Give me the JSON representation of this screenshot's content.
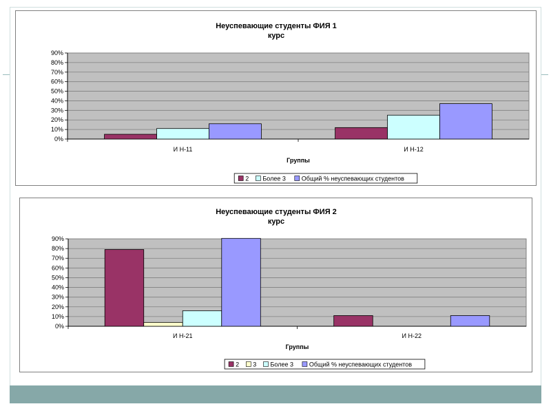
{
  "colors": {
    "plot_bg": "#c0c0c0",
    "gridline": "#7f7f7f",
    "series_2": "#993366",
    "series_3": "#ffffcc",
    "series_bolee3": "#ccffff",
    "series_total": "#9999ff",
    "band": "#86a8a8"
  },
  "chart_data": [
    {
      "type": "bar",
      "title_lines": [
        "Неуспевающие студенты ФИЯ 1",
        "курс"
      ],
      "xlabel": "Группы",
      "ylabel": "",
      "ylim": [
        0,
        90
      ],
      "yticks": [
        "0%",
        "10%",
        "20%",
        "30%",
        "40%",
        "50%",
        "60%",
        "70%",
        "80%",
        "90%"
      ],
      "grid": true,
      "legend_position": "bottom",
      "categories": [
        "И Н-11",
        "И Н-12"
      ],
      "series": [
        {
          "name": "2",
          "color_key": "series_2",
          "values": [
            5,
            12
          ]
        },
        {
          "name": "Более 3",
          "color_key": "series_bolee3",
          "values": [
            11,
            25
          ]
        },
        {
          "name": "Общий % неуспевающих студентов",
          "color_key": "series_total",
          "values": [
            16,
            37
          ]
        }
      ]
    },
    {
      "type": "bar",
      "title_lines": [
        "Неуспевающие студенты ФИЯ 2",
        "курс"
      ],
      "xlabel": "Группы",
      "ylabel": "",
      "ylim": [
        0,
        90
      ],
      "yticks": [
        "0%",
        "10%",
        "20%",
        "30%",
        "40%",
        "50%",
        "60%",
        "70%",
        "80%",
        "90%"
      ],
      "grid": true,
      "legend_position": "bottom",
      "categories": [
        "И Н-21",
        "И Н-22"
      ],
      "series": [
        {
          "name": "2",
          "color_key": "series_2",
          "values": [
            79,
            11
          ]
        },
        {
          "name": "3",
          "color_key": "series_3",
          "values": [
            4,
            0
          ]
        },
        {
          "name": "Более 3",
          "color_key": "series_bolee3",
          "values": [
            16,
            0
          ]
        },
        {
          "name": "Общий % неуспевающих студентов",
          "color_key": "series_total",
          "values": [
            92,
            11
          ]
        }
      ]
    }
  ]
}
